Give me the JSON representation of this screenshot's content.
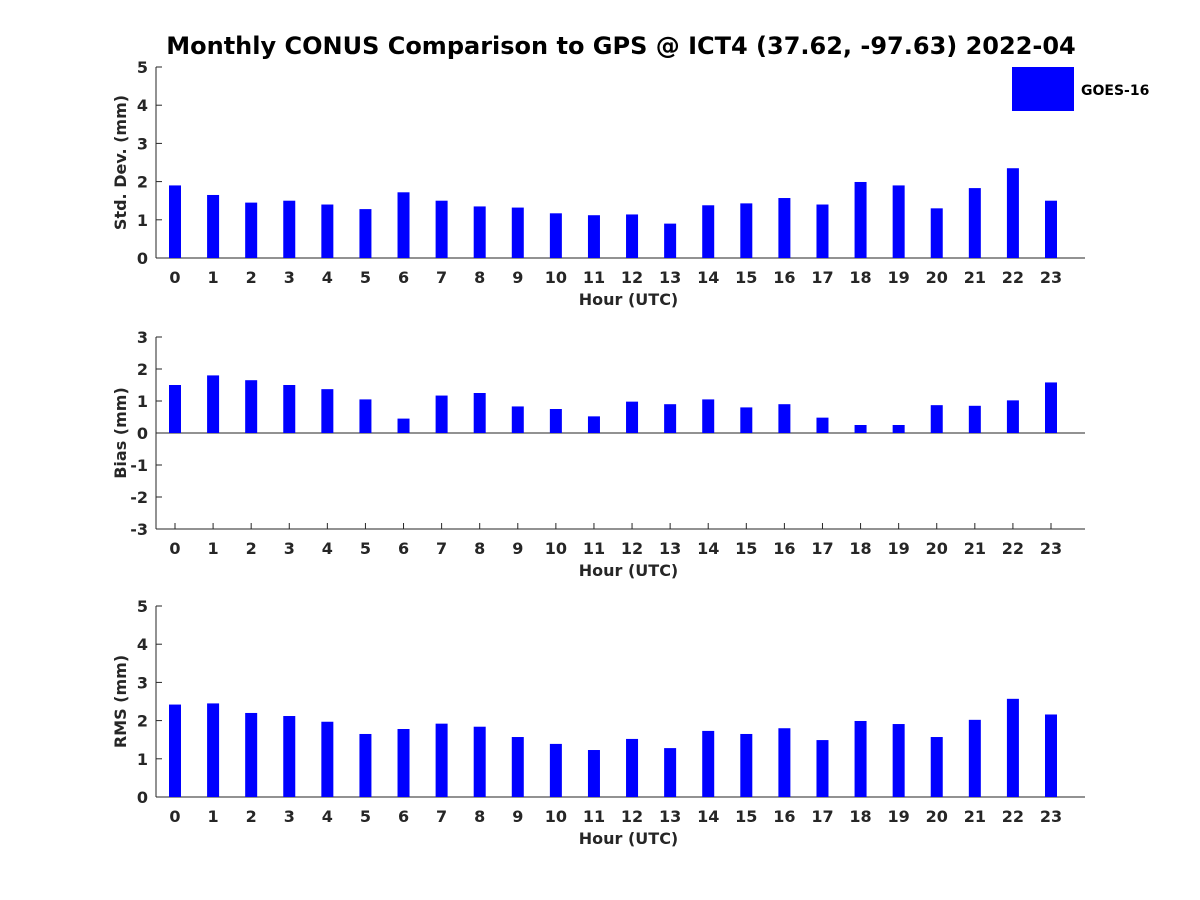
{
  "title": "Monthly CONUS Comparison to GPS @ ICT4 (37.62, -97.63) 2022-04",
  "legend": {
    "label": "GOES-16",
    "placement": "top-right",
    "color": "#0000ff"
  },
  "chart_data": [
    {
      "type": "bar",
      "ylabel": "Std. Dev. (mm)",
      "xlabel": "Hour (UTC)",
      "categories": [
        "0",
        "1",
        "2",
        "3",
        "4",
        "5",
        "6",
        "7",
        "8",
        "9",
        "10",
        "11",
        "12",
        "13",
        "14",
        "15",
        "16",
        "17",
        "18",
        "19",
        "20",
        "21",
        "22",
        "23"
      ],
      "ylim": [
        0,
        5
      ],
      "yticks": [
        "0",
        "1",
        "2",
        "3",
        "4",
        "5"
      ],
      "series": [
        {
          "name": "GOES-16",
          "color": "#0000ff",
          "values": [
            1.9,
            1.65,
            1.45,
            1.5,
            1.4,
            1.28,
            1.72,
            1.5,
            1.35,
            1.32,
            1.17,
            1.12,
            1.14,
            0.9,
            1.38,
            1.43,
            1.57,
            1.4,
            1.99,
            1.9,
            1.3,
            1.83,
            2.35,
            1.5
          ]
        }
      ],
      "grid": false
    },
    {
      "type": "bar",
      "ylabel": "Bias (mm)",
      "xlabel": "Hour (UTC)",
      "categories": [
        "0",
        "1",
        "2",
        "3",
        "4",
        "5",
        "6",
        "7",
        "8",
        "9",
        "10",
        "11",
        "12",
        "13",
        "14",
        "15",
        "16",
        "17",
        "18",
        "19",
        "20",
        "21",
        "22",
        "23"
      ],
      "ylim": [
        -3,
        3
      ],
      "yticks": [
        "3",
        "2",
        "1",
        "0",
        "-1",
        "-2",
        "-3"
      ],
      "series": [
        {
          "name": "GOES-16",
          "color": "#0000ff",
          "values": [
            1.5,
            1.8,
            1.65,
            1.5,
            1.37,
            1.05,
            0.45,
            1.17,
            1.25,
            0.83,
            0.75,
            0.52,
            0.98,
            0.9,
            1.05,
            0.8,
            0.9,
            0.48,
            0.25,
            0.25,
            0.87,
            0.85,
            1.02,
            1.58
          ]
        }
      ],
      "grid": false
    },
    {
      "type": "bar",
      "ylabel": "RMS (mm)",
      "xlabel": "Hour (UTC)",
      "categories": [
        "0",
        "1",
        "2",
        "3",
        "4",
        "5",
        "6",
        "7",
        "8",
        "9",
        "10",
        "11",
        "12",
        "13",
        "14",
        "15",
        "16",
        "17",
        "18",
        "19",
        "20",
        "21",
        "22",
        "23"
      ],
      "ylim": [
        0,
        5
      ],
      "yticks": [
        "0",
        "1",
        "2",
        "3",
        "4",
        "5"
      ],
      "series": [
        {
          "name": "GOES-16",
          "color": "#0000ff",
          "values": [
            2.42,
            2.45,
            2.2,
            2.12,
            1.97,
            1.65,
            1.78,
            1.92,
            1.84,
            1.57,
            1.39,
            1.23,
            1.52,
            1.28,
            1.73,
            1.65,
            1.8,
            1.49,
            1.99,
            1.91,
            1.57,
            2.02,
            2.57,
            2.16
          ]
        }
      ],
      "grid": false
    }
  ]
}
